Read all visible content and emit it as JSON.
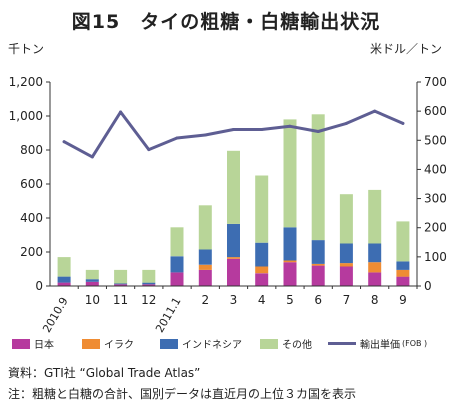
{
  "title": "図15　タイの粗糖・白糖輸出状況",
  "left_unit": "千トン",
  "right_unit": "米ドル／トン",
  "legend": {
    "japan": "日本",
    "iraq": "イラク",
    "indonesia": "インドネシア",
    "other": "その他",
    "price": "輸出単価",
    "price_suffix": "(FOB )"
  },
  "source": "資料：GTI社 “Global Trade Atlas”",
  "note": "注：粗糖と白糖の合計、国別データは直近月の上位３カ国を表示",
  "chart_data": {
    "type": "bar",
    "stacked": true,
    "categories": [
      "2010.9",
      "10",
      "11",
      "12",
      "2011.1",
      "2",
      "3",
      "4",
      "5",
      "6",
      "7",
      "8",
      "9"
    ],
    "series": [
      {
        "name": "日本",
        "color": "#b63a9e",
        "values": [
          20,
          25,
          10,
          10,
          80,
          95,
          160,
          75,
          140,
          120,
          115,
          80,
          55
        ]
      },
      {
        "name": "イラク",
        "color": "#ef8c33",
        "values": [
          0,
          0,
          0,
          0,
          0,
          30,
          10,
          40,
          10,
          10,
          20,
          60,
          40
        ]
      },
      {
        "name": "インドネシア",
        "color": "#3d6db2",
        "values": [
          35,
          15,
          5,
          10,
          95,
          90,
          195,
          140,
          195,
          140,
          115,
          110,
          50
        ]
      },
      {
        "name": "その他",
        "color": "#b8d598",
        "values": [
          115,
          55,
          80,
          75,
          170,
          260,
          430,
          395,
          635,
          740,
          290,
          315,
          235
        ]
      }
    ],
    "line_series": {
      "name": "輸出単価",
      "axis": "right",
      "color": "#5e5e93",
      "values": [
        495,
        443,
        597,
        468,
        508,
        518,
        537,
        537,
        548,
        530,
        558,
        600,
        558
      ]
    },
    "ylim": [
      0,
      1200
    ],
    "yticks": [
      0,
      200,
      400,
      600,
      800,
      1000,
      1200
    ],
    "ytick_labels": [
      "0",
      "200",
      "400",
      "600",
      "800",
      "1,000",
      "1,200"
    ],
    "y2lim": [
      0,
      700
    ],
    "y2ticks": [
      0,
      100,
      200,
      300,
      400,
      500,
      600,
      700
    ],
    "y2tick_labels": [
      "0",
      "100",
      "200",
      "300",
      "400",
      "500",
      "600",
      "700"
    ],
    "xlabel": "",
    "ylabel": "千トン",
    "y2label": "米ドル／トン",
    "grid": false,
    "legend_position": "bottom"
  }
}
